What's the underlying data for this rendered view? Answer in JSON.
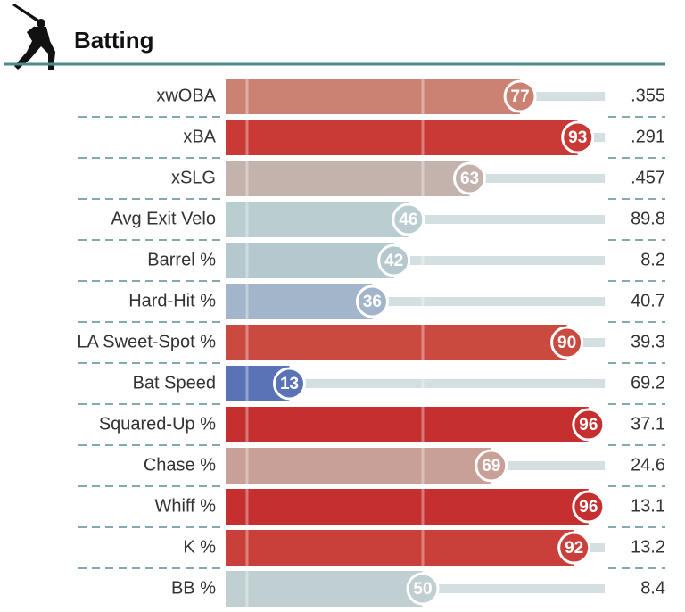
{
  "chart_data": {
    "type": "bar",
    "orientation": "horizontal",
    "title": "Batting",
    "categories": [
      "xwOBA",
      "xBA",
      "xSLG",
      "Avg Exit Velo",
      "Barrel %",
      "Hard-Hit %",
      "LA Sweet-Spot %",
      "Bat Speed",
      "Squared-Up %",
      "Chase %",
      "Whiff %",
      "K %",
      "BB %"
    ],
    "values": [
      77,
      93,
      63,
      46,
      42,
      36,
      90,
      13,
      96,
      69,
      96,
      92,
      50
    ],
    "colors": [
      "#cc8273",
      "#c93a36",
      "#c4b3ad",
      "#bacdd1",
      "#b5c8cd",
      "#a2b5ca",
      "#cb4a40",
      "#5a72b6",
      "#c52f2f",
      "#c9a097",
      "#c52f2f",
      "#c9403a",
      "#bfcfd2"
    ],
    "stats": [
      ".355",
      ".291",
      ".457",
      "89.8",
      "8.2",
      "40.7",
      "39.3",
      "69.2",
      "37.1",
      "24.6",
      "13.1",
      "13.2",
      "8.4"
    ],
    "xlim": [
      0,
      100
    ],
    "xticks": [
      0,
      50
    ]
  }
}
